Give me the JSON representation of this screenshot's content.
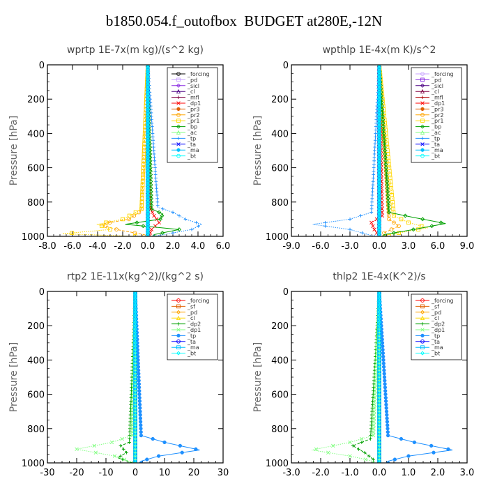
{
  "title": "b1850.054.f_outofbox  BUDGET at280E,-12N",
  "chart_data": [
    {
      "type": "line",
      "title": "wprtp  1E-7x(m kg)/(s^2 kg)",
      "ylabel": "Pressure [hPa]",
      "xlim": [
        -8,
        6
      ],
      "ylim": [
        1000,
        0
      ],
      "xticks": [
        "-8.0",
        "-6.0",
        "-4.0",
        "-2.0",
        "0.0",
        "2.0",
        "4.0",
        "6.0"
      ],
      "yticks": [
        "0",
        "200",
        "400",
        "600",
        "800",
        "1000"
      ],
      "legend_position": "top-right",
      "series": [
        {
          "name": "_forcing",
          "color": "#000000",
          "pressure": [
            0,
            1000
          ],
          "values": [
            0,
            0
          ]
        },
        {
          "name": "_pd",
          "color": "#c8a2ff",
          "pressure": [
            0,
            1000
          ],
          "values": [
            0,
            0
          ]
        },
        {
          "name": "_sicl",
          "color": "#8a2be2",
          "pressure": [
            0,
            1000
          ],
          "values": [
            0,
            0
          ]
        },
        {
          "name": "_cl",
          "color": "#4b0082",
          "pressure": [
            0,
            1000
          ],
          "values": [
            0,
            0
          ]
        },
        {
          "name": "_mfl",
          "color": "#800040",
          "pressure": [
            0,
            1000
          ],
          "values": [
            0,
            0
          ]
        },
        {
          "name": "_dp1",
          "color": "#ff0000",
          "pressure": [
            0,
            820,
            880,
            920,
            960,
            1000
          ],
          "values": [
            0,
            0.1,
            0.5,
            0.9,
            0.3,
            0.1
          ]
        },
        {
          "name": "_pr3",
          "color": "#e06000",
          "pressure": [
            0,
            1000
          ],
          "values": [
            0,
            0
          ]
        },
        {
          "name": "_pr2",
          "color": "#ffa500",
          "pressure": [
            0,
            850,
            900,
            930,
            960,
            990
          ],
          "values": [
            0,
            -0.5,
            -1.5,
            -3.8,
            -2.5,
            -0.3
          ]
        },
        {
          "name": "_pr1",
          "color": "#ffd700",
          "pressure": [
            0,
            840,
            870,
            900,
            930,
            960,
            985,
            1000
          ],
          "values": [
            0,
            -0.5,
            -1.2,
            -2.0,
            -4.0,
            -3.0,
            -6.8,
            -1.0
          ]
        },
        {
          "name": "_bp",
          "color": "#00a000",
          "pressure": [
            0,
            840,
            870,
            900,
            930,
            960,
            990
          ],
          "values": [
            0,
            0.3,
            1.2,
            1.0,
            -1.8,
            2.5,
            0.5
          ]
        },
        {
          "name": "_ac",
          "color": "#80ff80",
          "pressure": [
            0,
            1000
          ],
          "values": [
            0,
            0
          ]
        },
        {
          "name": "_tp",
          "color": "#1e90ff",
          "pressure": [
            0,
            830,
            860,
            900,
            930,
            960,
            1000
          ],
          "values": [
            0,
            0.8,
            2.0,
            3.0,
            4.3,
            3.5,
            0.5
          ]
        },
        {
          "name": "_ta",
          "color": "#0000ff",
          "pressure": [
            0,
            1000
          ],
          "values": [
            0,
            0
          ]
        },
        {
          "name": "_ma",
          "color": "#00bfff",
          "pressure": [
            0,
            1000
          ],
          "values": [
            0,
            0
          ]
        },
        {
          "name": "_bt",
          "color": "#00ffff",
          "pressure": [
            0,
            1000
          ],
          "values": [
            0,
            0
          ]
        }
      ]
    },
    {
      "type": "line",
      "title": "wpthlp  1E-4x(m K)/s^2",
      "ylabel": "Pressure [hPa]",
      "xlim": [
        -9,
        9
      ],
      "ylim": [
        1000,
        0
      ],
      "xticks": [
        "-9.0",
        "-6.0",
        "-3.0",
        "0.0",
        "3.0",
        "6.0",
        "9.0"
      ],
      "yticks": [
        "0",
        "200",
        "400",
        "600",
        "800",
        "1000"
      ],
      "legend_position": "top-right",
      "series": [
        {
          "name": "_forcing",
          "color": "#c8a2ff",
          "pressure": [
            0,
            1000
          ],
          "values": [
            0,
            0
          ]
        },
        {
          "name": "_pd",
          "color": "#8a2be2",
          "pressure": [
            0,
            1000
          ],
          "values": [
            0,
            0
          ]
        },
        {
          "name": "_sicl",
          "color": "#4b0082",
          "pressure": [
            0,
            1000
          ],
          "values": [
            0,
            0
          ]
        },
        {
          "name": "_cl",
          "color": "#800040",
          "pressure": [
            0,
            1000
          ],
          "values": [
            0,
            0
          ]
        },
        {
          "name": "_mfl",
          "color": "#b00000",
          "pressure": [
            0,
            1000
          ],
          "values": [
            0,
            0
          ]
        },
        {
          "name": "_dp1",
          "color": "#ff0000",
          "pressure": [
            0,
            880,
            920,
            960,
            1000
          ],
          "values": [
            0,
            0.3,
            -0.8,
            -0.5,
            0
          ]
        },
        {
          "name": "_pr3",
          "color": "#e06000",
          "pressure": [
            0,
            1000
          ],
          "values": [
            0,
            0
          ]
        },
        {
          "name": "_pr2",
          "color": "#ffa500",
          "pressure": [
            0,
            900,
            940,
            980
          ],
          "values": [
            0,
            1.0,
            2.0,
            0.5
          ]
        },
        {
          "name": "_pr1",
          "color": "#ffd700",
          "pressure": [
            0,
            880,
            920,
            950,
            990
          ],
          "values": [
            0,
            1.5,
            3.0,
            5.0,
            1.0
          ]
        },
        {
          "name": "_bp",
          "color": "#00a000",
          "pressure": [
            0,
            860,
            890,
            925,
            960,
            990
          ],
          "values": [
            0,
            1.0,
            3.5,
            6.8,
            3.5,
            0.5
          ]
        },
        {
          "name": "_ac",
          "color": "#80ff80",
          "pressure": [
            0,
            1000
          ],
          "values": [
            0,
            0
          ]
        },
        {
          "name": "_tp",
          "color": "#1e90ff",
          "pressure": [
            0,
            860,
            900,
            930,
            960,
            1000
          ],
          "values": [
            0,
            -0.8,
            -3.0,
            -6.8,
            -3.0,
            -0.5
          ]
        },
        {
          "name": "_ta",
          "color": "#0000ff",
          "pressure": [
            0,
            1000
          ],
          "values": [
            0,
            0
          ]
        },
        {
          "name": "_ma",
          "color": "#00bfff",
          "pressure": [
            0,
            1000
          ],
          "values": [
            0,
            0
          ]
        },
        {
          "name": "_bt",
          "color": "#00ffff",
          "pressure": [
            0,
            1000
          ],
          "values": [
            0,
            0
          ]
        }
      ]
    },
    {
      "type": "line",
      "title": "rtp2  1E-11x(kg^2)/(kg^2 s)",
      "ylabel": "Pressure [hPa]",
      "xlim": [
        -30,
        30
      ],
      "ylim": [
        1000,
        0
      ],
      "xticks": [
        "-30",
        "-20",
        "-10",
        "0",
        "10",
        "20",
        "30"
      ],
      "yticks": [
        "0",
        "200",
        "400",
        "600",
        "800",
        "1000"
      ],
      "legend_position": "top-right",
      "series": [
        {
          "name": "_forcing",
          "color": "#ff0000",
          "pressure": [
            0,
            1000
          ],
          "values": [
            0,
            0
          ]
        },
        {
          "name": "_sf",
          "color": "#e06000",
          "pressure": [
            0,
            1000
          ],
          "values": [
            0,
            0
          ]
        },
        {
          "name": "_pd",
          "color": "#ffa500",
          "pressure": [
            0,
            1000
          ],
          "values": [
            0,
            0
          ]
        },
        {
          "name": "_cl",
          "color": "#ffd700",
          "pressure": [
            0,
            1000
          ],
          "values": [
            0,
            0
          ]
        },
        {
          "name": "_dp2",
          "color": "#00a000",
          "pressure": [
            0,
            880,
            900,
            940,
            970,
            1000
          ],
          "values": [
            0,
            -2,
            -5,
            -3,
            -6,
            -1
          ]
        },
        {
          "name": "_dp1",
          "color": "#80ff80",
          "pressure": [
            0,
            840,
            880,
            920,
            960,
            990
          ],
          "values": [
            0,
            -1,
            -8,
            -20,
            -7,
            -2
          ]
        },
        {
          "name": "_tp",
          "color": "#1e90ff",
          "pressure": [
            0,
            840,
            880,
            925,
            960,
            990
          ],
          "values": [
            0,
            2,
            10,
            22,
            8,
            2
          ]
        },
        {
          "name": "_ta",
          "color": "#0000ff",
          "pressure": [
            0,
            1000
          ],
          "values": [
            0,
            0
          ]
        },
        {
          "name": "_ma",
          "color": "#00bfff",
          "pressure": [
            0,
            1000
          ],
          "values": [
            0,
            0
          ]
        },
        {
          "name": "_bt",
          "color": "#00ffff",
          "pressure": [
            0,
            1000
          ],
          "values": [
            0,
            0
          ]
        }
      ]
    },
    {
      "type": "line",
      "title": "thlp2  1E-4x(K^2)/s",
      "ylabel": "Pressure [hPa]",
      "xlim": [
        -3,
        3
      ],
      "ylim": [
        1000,
        0
      ],
      "xticks": [
        "-3.0",
        "-2.0",
        "-1.0",
        "0.0",
        "1.0",
        "2.0",
        "3.0"
      ],
      "yticks": [
        "0",
        "200",
        "400",
        "600",
        "800",
        "1000"
      ],
      "legend_position": "top-right",
      "series": [
        {
          "name": "_forcing",
          "color": "#ff0000",
          "pressure": [
            0,
            1000
          ],
          "values": [
            0,
            0
          ]
        },
        {
          "name": "_sf",
          "color": "#e06000",
          "pressure": [
            0,
            1000
          ],
          "values": [
            0,
            0
          ]
        },
        {
          "name": "_pd",
          "color": "#ffa500",
          "pressure": [
            0,
            1000
          ],
          "values": [
            0,
            0
          ]
        },
        {
          "name": "_cl",
          "color": "#ffd700",
          "pressure": [
            0,
            1000
          ],
          "values": [
            0,
            0
          ]
        },
        {
          "name": "_dp2",
          "color": "#00a000",
          "pressure": [
            0,
            860,
            900,
            940,
            980
          ],
          "values": [
            0,
            -0.3,
            -0.9,
            -0.5,
            -0.2
          ]
        },
        {
          "name": "_dp1",
          "color": "#80ff80",
          "pressure": [
            0,
            840,
            880,
            925,
            960,
            990
          ],
          "values": [
            0,
            -0.2,
            -1.0,
            -2.3,
            -1.0,
            -0.2
          ]
        },
        {
          "name": "_tp",
          "color": "#1e90ff",
          "pressure": [
            0,
            840,
            880,
            925,
            960,
            990
          ],
          "values": [
            0,
            0.3,
            1.2,
            2.5,
            1.0,
            0.3
          ]
        },
        {
          "name": "_ta",
          "color": "#0000ff",
          "pressure": [
            0,
            1000
          ],
          "values": [
            0,
            0
          ]
        },
        {
          "name": "_ma",
          "color": "#00bfff",
          "pressure": [
            0,
            1000
          ],
          "values": [
            0,
            0
          ]
        },
        {
          "name": "_bt",
          "color": "#00ffff",
          "pressure": [
            0,
            1000
          ],
          "values": [
            0,
            0
          ]
        }
      ]
    }
  ]
}
